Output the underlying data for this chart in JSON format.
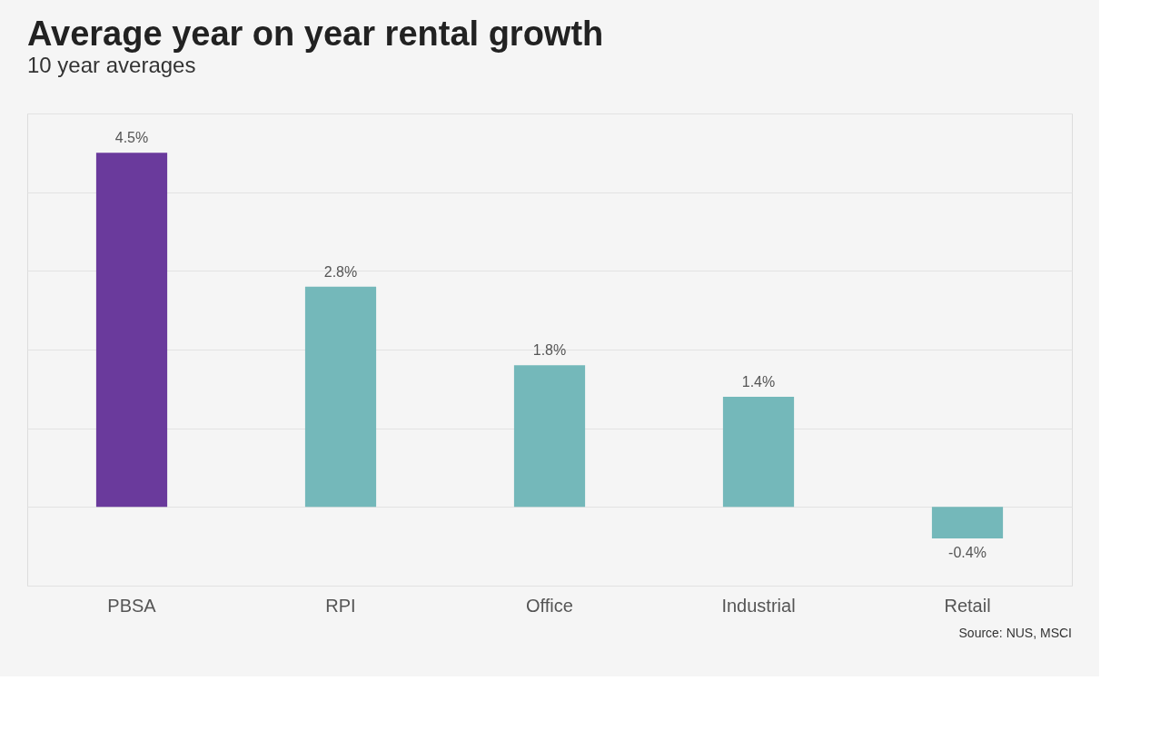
{
  "chart_data": {
    "type": "bar",
    "title": "Average year on year rental growth",
    "subtitle": "10 year averages",
    "categories": [
      "PBSA",
      "RPI",
      "Office",
      "Industrial",
      "Retail"
    ],
    "values": [
      4.5,
      2.8,
      1.8,
      1.4,
      -0.4
    ],
    "colors": [
      "#6a3a9c",
      "#74b8ba",
      "#74b8ba",
      "#74b8ba",
      "#74b8ba"
    ],
    "value_labels": [
      "4.5%",
      "2.8%",
      "1.8%",
      "1.4%",
      "-0.4%"
    ],
    "ylim": [
      -1,
      5
    ],
    "yticks": [
      {
        "value": -1,
        "label": null
      },
      {
        "value": 0,
        "label": null
      },
      {
        "value": 1,
        "label": null
      },
      {
        "value": 2,
        "label": null
      },
      {
        "value": 3,
        "label": null
      },
      {
        "value": 4,
        "label": null
      },
      {
        "value": 5,
        "label": null
      }
    ],
    "grid": "y",
    "tick_labels": "x",
    "annotations": [
      "Source: NUS, MSCI"
    ]
  }
}
